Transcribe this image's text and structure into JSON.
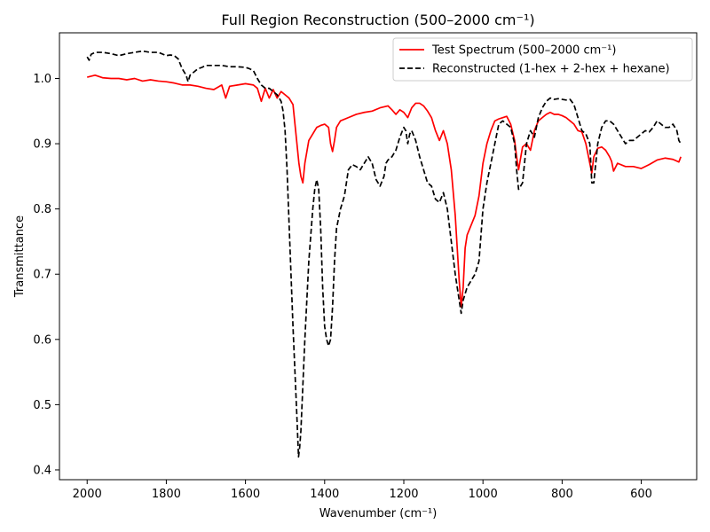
{
  "chart_data": {
    "type": "line",
    "title": "Full Region Reconstruction (500–2000 cm⁻¹)",
    "xlabel": "Wavenumber (cm⁻¹)",
    "ylabel": "Transmittance",
    "xlim": [
      2070,
      460
    ],
    "ylim": [
      0.385,
      1.07
    ],
    "x_ticks": [
      2000,
      1800,
      1600,
      1400,
      1200,
      1000,
      800,
      600
    ],
    "y_ticks": [
      0.4,
      0.5,
      0.6,
      0.7,
      0.8,
      0.9,
      1.0
    ],
    "x_tick_labels": [
      "2000",
      "1800",
      "1600",
      "1400",
      "1200",
      "1000",
      "800",
      "600"
    ],
    "y_tick_labels": [
      "0.4",
      "0.5",
      "0.6",
      "0.7",
      "0.8",
      "0.9",
      "1.0"
    ],
    "grid": false,
    "legend_position": "top-right",
    "series": [
      {
        "name": "Test Spectrum (500–2000 cm⁻¹)",
        "color": "#ff0000",
        "style": "solid",
        "x": [
          2000,
          1980,
          1960,
          1940,
          1920,
          1900,
          1880,
          1860,
          1840,
          1820,
          1800,
          1780,
          1760,
          1740,
          1720,
          1700,
          1680,
          1660,
          1650,
          1640,
          1620,
          1600,
          1580,
          1570,
          1560,
          1550,
          1540,
          1530,
          1520,
          1510,
          1500,
          1490,
          1480,
          1475,
          1470,
          1465,
          1460,
          1455,
          1450,
          1440,
          1430,
          1420,
          1410,
          1400,
          1390,
          1385,
          1380,
          1375,
          1370,
          1360,
          1340,
          1320,
          1300,
          1280,
          1260,
          1240,
          1230,
          1220,
          1210,
          1200,
          1190,
          1180,
          1170,
          1160,
          1150,
          1140,
          1130,
          1120,
          1110,
          1100,
          1090,
          1080,
          1070,
          1065,
          1060,
          1055,
          1050,
          1045,
          1040,
          1030,
          1020,
          1010,
          1000,
          990,
          980,
          970,
          960,
          950,
          940,
          930,
          920,
          915,
          910,
          900,
          890,
          880,
          870,
          860,
          850,
          840,
          830,
          820,
          810,
          800,
          790,
          780,
          770,
          760,
          750,
          740,
          730,
          725,
          720,
          710,
          700,
          690,
          680,
          675,
          670,
          660,
          640,
          620,
          600,
          580,
          560,
          540,
          520,
          505,
          500
        ],
        "y": [
          1.002,
          1.005,
          1.001,
          1.0,
          1.0,
          0.998,
          1.0,
          0.996,
          0.998,
          0.996,
          0.995,
          0.993,
          0.99,
          0.99,
          0.988,
          0.985,
          0.983,
          0.99,
          0.97,
          0.988,
          0.99,
          0.992,
          0.99,
          0.985,
          0.965,
          0.985,
          0.97,
          0.983,
          0.97,
          0.98,
          0.975,
          0.97,
          0.96,
          0.93,
          0.9,
          0.87,
          0.85,
          0.84,
          0.87,
          0.905,
          0.915,
          0.925,
          0.928,
          0.93,
          0.925,
          0.9,
          0.888,
          0.905,
          0.925,
          0.935,
          0.94,
          0.945,
          0.948,
          0.95,
          0.955,
          0.958,
          0.952,
          0.945,
          0.952,
          0.948,
          0.94,
          0.955,
          0.962,
          0.962,
          0.958,
          0.95,
          0.94,
          0.92,
          0.905,
          0.92,
          0.9,
          0.86,
          0.79,
          0.74,
          0.69,
          0.65,
          0.68,
          0.74,
          0.76,
          0.775,
          0.79,
          0.82,
          0.87,
          0.9,
          0.92,
          0.935,
          0.938,
          0.94,
          0.942,
          0.93,
          0.905,
          0.88,
          0.86,
          0.895,
          0.9,
          0.89,
          0.92,
          0.935,
          0.94,
          0.945,
          0.948,
          0.945,
          0.945,
          0.943,
          0.94,
          0.935,
          0.93,
          0.92,
          0.918,
          0.9,
          0.87,
          0.855,
          0.88,
          0.893,
          0.895,
          0.89,
          0.88,
          0.873,
          0.858,
          0.87,
          0.865,
          0.865,
          0.862,
          0.868,
          0.875,
          0.878,
          0.876,
          0.872,
          0.88
        ]
      },
      {
        "name": "Reconstructed (1-hex + 2-hex + hexane)",
        "color": "#000000",
        "style": "dashed",
        "x": [
          2000,
          1995,
          1990,
          1980,
          1960,
          1940,
          1920,
          1900,
          1880,
          1860,
          1840,
          1820,
          1800,
          1790,
          1780,
          1770,
          1760,
          1750,
          1745,
          1740,
          1730,
          1720,
          1710,
          1700,
          1680,
          1660,
          1640,
          1620,
          1600,
          1590,
          1580,
          1570,
          1560,
          1550,
          1540,
          1530,
          1520,
          1510,
          1505,
          1500,
          1495,
          1490,
          1485,
          1480,
          1475,
          1470,
          1466,
          1463,
          1460,
          1455,
          1450,
          1440,
          1430,
          1425,
          1420,
          1415,
          1410,
          1405,
          1400,
          1395,
          1390,
          1385,
          1380,
          1375,
          1370,
          1360,
          1350,
          1340,
          1330,
          1320,
          1310,
          1300,
          1290,
          1280,
          1270,
          1260,
          1250,
          1245,
          1240,
          1230,
          1220,
          1210,
          1200,
          1195,
          1190,
          1185,
          1180,
          1170,
          1160,
          1150,
          1140,
          1130,
          1120,
          1110,
          1100,
          1090,
          1080,
          1070,
          1065,
          1060,
          1055,
          1050,
          1040,
          1030,
          1020,
          1010,
          1000,
          990,
          980,
          970,
          960,
          950,
          940,
          930,
          920,
          915,
          910,
          900,
          890,
          880,
          870,
          860,
          850,
          840,
          830,
          820,
          810,
          800,
          790,
          780,
          770,
          760,
          750,
          740,
          730,
          725,
          720,
          710,
          700,
          690,
          680,
          670,
          660,
          650,
          640,
          630,
          620,
          610,
          600,
          590,
          580,
          570,
          560,
          550,
          540,
          530,
          520,
          510,
          505,
          500
        ],
        "y": [
          1.033,
          1.028,
          1.037,
          1.04,
          1.04,
          1.038,
          1.035,
          1.038,
          1.04,
          1.042,
          1.04,
          1.04,
          1.035,
          1.036,
          1.035,
          1.03,
          1.015,
          1.005,
          0.995,
          1.005,
          1.01,
          1.015,
          1.017,
          1.02,
          1.02,
          1.02,
          1.018,
          1.018,
          1.017,
          1.015,
          1.012,
          1.0,
          0.99,
          0.985,
          0.985,
          0.98,
          0.975,
          0.965,
          0.95,
          0.92,
          0.86,
          0.78,
          0.7,
          0.62,
          0.55,
          0.48,
          0.42,
          0.435,
          0.46,
          0.53,
          0.6,
          0.72,
          0.8,
          0.83,
          0.845,
          0.83,
          0.77,
          0.68,
          0.62,
          0.6,
          0.59,
          0.6,
          0.65,
          0.72,
          0.77,
          0.8,
          0.82,
          0.86,
          0.868,
          0.865,
          0.86,
          0.87,
          0.88,
          0.87,
          0.845,
          0.835,
          0.85,
          0.87,
          0.875,
          0.88,
          0.89,
          0.91,
          0.925,
          0.92,
          0.9,
          0.915,
          0.92,
          0.905,
          0.88,
          0.86,
          0.84,
          0.835,
          0.815,
          0.81,
          0.825,
          0.8,
          0.75,
          0.7,
          0.68,
          0.66,
          0.64,
          0.66,
          0.68,
          0.69,
          0.7,
          0.72,
          0.8,
          0.84,
          0.87,
          0.9,
          0.93,
          0.935,
          0.93,
          0.925,
          0.9,
          0.86,
          0.83,
          0.84,
          0.9,
          0.92,
          0.91,
          0.94,
          0.955,
          0.965,
          0.97,
          0.968,
          0.969,
          0.968,
          0.967,
          0.968,
          0.96,
          0.94,
          0.92,
          0.915,
          0.9,
          0.84,
          0.84,
          0.9,
          0.925,
          0.935,
          0.935,
          0.93,
          0.92,
          0.91,
          0.9,
          0.905,
          0.905,
          0.91,
          0.915,
          0.92,
          0.918,
          0.925,
          0.935,
          0.93,
          0.925,
          0.925,
          0.93,
          0.92,
          0.905,
          0.9
        ]
      }
    ]
  }
}
